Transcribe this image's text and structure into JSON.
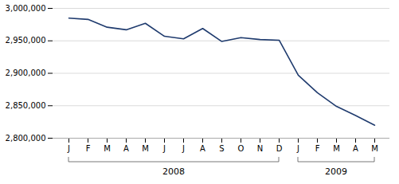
{
  "chart_data": {
    "type": "line",
    "categories": [
      "J",
      "F",
      "M",
      "A",
      "M",
      "J",
      "J",
      "A",
      "S",
      "O",
      "N",
      "D",
      "J",
      "F",
      "M",
      "A",
      "M"
    ],
    "values": [
      2985000,
      2983000,
      2971000,
      2967000,
      2977000,
      2957000,
      2953000,
      2969000,
      2949000,
      2955000,
      2952000,
      2951000,
      2897000,
      2870000,
      2849000,
      2835000,
      2820000
    ],
    "color": "#1F3B6E",
    "ylim": [
      2800000,
      3000000
    ],
    "yticks": [
      {
        "value": 2800000,
        "label": "2,800,000"
      },
      {
        "value": 2850000,
        "label": "2,850,000"
      },
      {
        "value": 2900000,
        "label": "2,900,000"
      },
      {
        "value": 2950000,
        "label": "2,950,000"
      },
      {
        "value": 3000000,
        "label": "3,000,000"
      }
    ],
    "grid": true,
    "annotations": [
      {
        "text": "2008",
        "from": 0,
        "to": 11
      },
      {
        "text": "2009",
        "from": 12,
        "to": 16
      }
    ]
  }
}
